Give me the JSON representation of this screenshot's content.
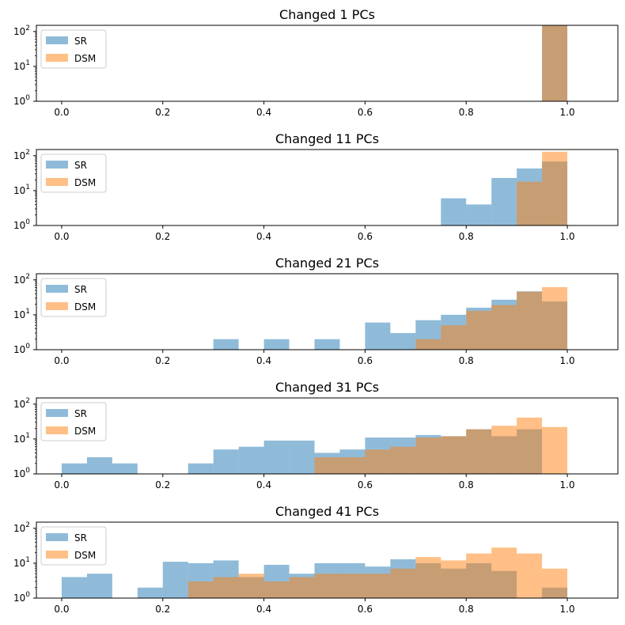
{
  "chart_data": [
    {
      "type": "histogram",
      "title": "Changed 1 PCs",
      "xlim": [
        -0.05,
        1.1
      ],
      "ylim": [
        1,
        150
      ],
      "yscale": "log",
      "xticks": [
        "0.0",
        "0.2",
        "0.4",
        "0.6",
        "0.8",
        "1.0"
      ],
      "yticks": [
        {
          "base": "10",
          "exp": "0"
        },
        {
          "base": "10",
          "exp": "1"
        },
        {
          "base": "10",
          "exp": "2"
        }
      ],
      "bin_edges": [
        0,
        0.05,
        0.1,
        0.15,
        0.2,
        0.25,
        0.3,
        0.35,
        0.4,
        0.45,
        0.5,
        0.55,
        0.6,
        0.65,
        0.7,
        0.75,
        0.8,
        0.85,
        0.9,
        0.95,
        1.0
      ],
      "series": [
        {
          "name": "SR",
          "color": "#1f77b4",
          "values": [
            0,
            0,
            0,
            0,
            0,
            0,
            0,
            0,
            0,
            0,
            0,
            0,
            0,
            0,
            0,
            0,
            0,
            0,
            0,
            150
          ]
        },
        {
          "name": "DSM",
          "color": "#ff7f0e",
          "values": [
            0,
            0,
            0,
            0,
            0,
            0,
            0,
            0,
            0,
            0,
            0,
            0,
            0,
            0,
            0,
            0,
            0,
            0,
            0,
            150
          ]
        }
      ],
      "legend": "upper-left"
    },
    {
      "type": "histogram",
      "title": "Changed 11 PCs",
      "xlim": [
        -0.05,
        1.1
      ],
      "ylim": [
        1,
        150
      ],
      "yscale": "log",
      "xticks": [
        "0.0",
        "0.2",
        "0.4",
        "0.6",
        "0.8",
        "1.0"
      ],
      "yticks": [
        {
          "base": "10",
          "exp": "0"
        },
        {
          "base": "10",
          "exp": "1"
        },
        {
          "base": "10",
          "exp": "2"
        }
      ],
      "bin_edges": [
        0,
        0.05,
        0.1,
        0.15,
        0.2,
        0.25,
        0.3,
        0.35,
        0.4,
        0.45,
        0.5,
        0.55,
        0.6,
        0.65,
        0.7,
        0.75,
        0.8,
        0.85,
        0.9,
        0.95,
        1.0
      ],
      "series": [
        {
          "name": "SR",
          "color": "#1f77b4",
          "values": [
            0,
            0,
            0,
            0,
            0,
            0,
            0,
            0,
            0,
            0,
            0,
            0,
            0,
            0,
            0,
            6,
            4,
            23,
            43,
            68
          ]
        },
        {
          "name": "DSM",
          "color": "#ff7f0e",
          "values": [
            0,
            0,
            0,
            0,
            0,
            0,
            0,
            0,
            0,
            0,
            0,
            0,
            0,
            0,
            0,
            0,
            0,
            0,
            18,
            130
          ]
        }
      ],
      "legend": "upper-left"
    },
    {
      "type": "histogram",
      "title": "Changed 21 PCs",
      "xlim": [
        -0.05,
        1.1
      ],
      "ylim": [
        1,
        150
      ],
      "yscale": "log",
      "xticks": [
        "0.0",
        "0.2",
        "0.4",
        "0.6",
        "0.8",
        "1.0"
      ],
      "yticks": [
        {
          "base": "10",
          "exp": "0"
        },
        {
          "base": "10",
          "exp": "1"
        },
        {
          "base": "10",
          "exp": "2"
        }
      ],
      "bin_edges": [
        0,
        0.05,
        0.1,
        0.15,
        0.2,
        0.25,
        0.3,
        0.35,
        0.4,
        0.45,
        0.5,
        0.55,
        0.6,
        0.65,
        0.7,
        0.75,
        0.8,
        0.85,
        0.9,
        0.95,
        1.0
      ],
      "series": [
        {
          "name": "SR",
          "color": "#1f77b4",
          "values": [
            0,
            0,
            0,
            0,
            0,
            0,
            2,
            0,
            2,
            0,
            2,
            0,
            6,
            3,
            7,
            10,
            16,
            27,
            47,
            24
          ]
        },
        {
          "name": "DSM",
          "color": "#ff7f0e",
          "values": [
            0,
            0,
            0,
            0,
            0,
            0,
            0,
            0,
            0,
            0,
            0,
            0,
            0,
            0,
            2,
            5,
            13,
            19,
            46,
            62
          ]
        }
      ],
      "legend": "upper-left"
    },
    {
      "type": "histogram",
      "title": "Changed 31 PCs",
      "xlim": [
        -0.05,
        1.1
      ],
      "ylim": [
        1,
        150
      ],
      "yscale": "log",
      "xticks": [
        "0.0",
        "0.2",
        "0.4",
        "0.6",
        "0.8",
        "1.0"
      ],
      "yticks": [
        {
          "base": "10",
          "exp": "0"
        },
        {
          "base": "10",
          "exp": "1"
        },
        {
          "base": "10",
          "exp": "2"
        }
      ],
      "bin_edges": [
        0,
        0.05,
        0.1,
        0.15,
        0.2,
        0.25,
        0.3,
        0.35,
        0.4,
        0.45,
        0.5,
        0.55,
        0.6,
        0.65,
        0.7,
        0.75,
        0.8,
        0.85,
        0.9,
        0.95,
        1.0
      ],
      "series": [
        {
          "name": "SR",
          "color": "#1f77b4",
          "values": [
            2,
            3,
            2,
            0,
            0,
            2,
            5,
            6,
            9,
            9,
            4,
            5,
            11,
            11,
            13,
            12,
            19,
            12,
            19,
            0
          ]
        },
        {
          "name": "DSM",
          "color": "#ff7f0e",
          "values": [
            0,
            0,
            0,
            0,
            0,
            0,
            0,
            0,
            0,
            0,
            3,
            3,
            5,
            6,
            11,
            12,
            19,
            24,
            41,
            22
          ]
        }
      ],
      "legend": "upper-left"
    },
    {
      "type": "histogram",
      "title": "Changed 41 PCs",
      "xlim": [
        -0.05,
        1.1
      ],
      "ylim": [
        1,
        150
      ],
      "yscale": "log",
      "xticks": [
        "0.0",
        "0.2",
        "0.4",
        "0.6",
        "0.8",
        "1.0"
      ],
      "yticks": [
        {
          "base": "10",
          "exp": "0"
        },
        {
          "base": "10",
          "exp": "1"
        },
        {
          "base": "10",
          "exp": "2"
        }
      ],
      "bin_edges": [
        0,
        0.05,
        0.1,
        0.15,
        0.2,
        0.25,
        0.3,
        0.35,
        0.4,
        0.45,
        0.5,
        0.55,
        0.6,
        0.65,
        0.7,
        0.75,
        0.8,
        0.85,
        0.9,
        0.95,
        1.0
      ],
      "series": [
        {
          "name": "SR",
          "color": "#1f77b4",
          "values": [
            4,
            5,
            0,
            2,
            11,
            10,
            12,
            4,
            9,
            5,
            10,
            10,
            8,
            13,
            10,
            7,
            10,
            6,
            0,
            2
          ]
        },
        {
          "name": "DSM",
          "color": "#ff7f0e",
          "values": [
            0,
            0,
            0,
            0,
            0,
            3,
            4,
            5,
            3,
            4,
            5,
            5,
            5,
            7,
            15,
            12,
            19,
            28,
            19,
            7
          ]
        }
      ],
      "legend": "upper-left"
    }
  ]
}
